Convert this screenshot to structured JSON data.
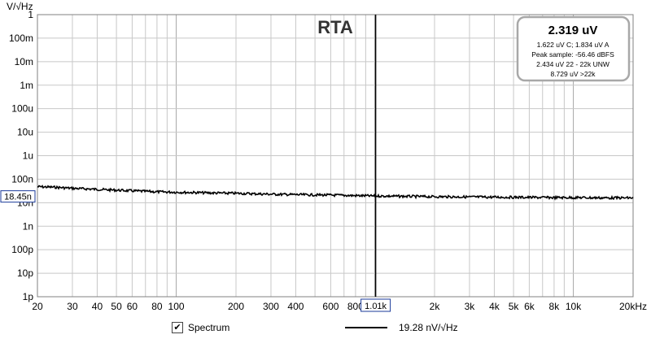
{
  "chart_data": {
    "type": "line",
    "title": "RTA",
    "ylabel": "V/√Hz",
    "y_scale": "log",
    "x_scale": "log",
    "xlim": [
      20,
      20000
    ],
    "ylim": [
      1e-12,
      1
    ],
    "y_ticks": [
      {
        "value": 1,
        "label": "1"
      },
      {
        "value": 0.1,
        "label": "100m"
      },
      {
        "value": 0.01,
        "label": "10m"
      },
      {
        "value": 0.001,
        "label": "1m"
      },
      {
        "value": 0.0001,
        "label": "100u"
      },
      {
        "value": 1e-05,
        "label": "10u"
      },
      {
        "value": 1e-06,
        "label": "1u"
      },
      {
        "value": 1e-07,
        "label": "100n"
      },
      {
        "value": 1e-08,
        "label": "10n"
      },
      {
        "value": 1e-09,
        "label": "1n"
      },
      {
        "value": 1e-10,
        "label": "100p"
      },
      {
        "value": 1e-11,
        "label": "10p"
      },
      {
        "value": 1e-12,
        "label": "1p"
      }
    ],
    "x_ticks": [
      {
        "value": 20,
        "label": "20"
      },
      {
        "value": 30,
        "label": "30"
      },
      {
        "value": 40,
        "label": "40"
      },
      {
        "value": 50,
        "label": "50"
      },
      {
        "value": 60,
        "label": "60"
      },
      {
        "value": 80,
        "label": "80"
      },
      {
        "value": 100,
        "label": "100"
      },
      {
        "value": 200,
        "label": "200"
      },
      {
        "value": 300,
        "label": "300"
      },
      {
        "value": 400,
        "label": "400"
      },
      {
        "value": 600,
        "label": "600"
      },
      {
        "value": 800,
        "label": "800"
      },
      {
        "value": 2000,
        "label": "2k"
      },
      {
        "value": 3000,
        "label": "3k"
      },
      {
        "value": 4000,
        "label": "4k"
      },
      {
        "value": 5000,
        "label": "5k"
      },
      {
        "value": 6000,
        "label": "6k"
      },
      {
        "value": 8000,
        "label": "8k"
      },
      {
        "value": 10000,
        "label": "10k"
      },
      {
        "value": 20000,
        "label": "20kHz"
      }
    ],
    "grid": true,
    "series": [
      {
        "name": "Spectrum",
        "color": "#000000",
        "x": [
          20,
          25,
          30,
          40,
          50,
          60,
          80,
          100,
          150,
          200,
          300,
          400,
          600,
          800,
          1010,
          1500,
          2000,
          3000,
          5000,
          8000,
          10000,
          15000,
          20000
        ],
        "y": [
          4.8e-08,
          4.5e-08,
          4.1e-08,
          3.7e-08,
          3.4e-08,
          3.2e-08,
          2.9e-08,
          2.8e-08,
          2.6e-08,
          2.5e-08,
          2.3e-08,
          2.2e-08,
          2.1e-08,
          2e-08,
          1.93e-08,
          1.85e-08,
          1.8e-08,
          1.75e-08,
          1.7e-08,
          1.65e-08,
          1.65e-08,
          1.6e-08,
          1.6e-08
        ]
      }
    ],
    "cursor": {
      "x_label": "1.01k",
      "x_value": 1010,
      "y_label": "18.45n",
      "y_value": 1.845e-08
    }
  },
  "readout": {
    "main": "2.319 uV",
    "lines": [
      "1.622 uV C; 1.834 uV A",
      "Peak sample: -56.46 dBFS",
      "2.434 uV 22 - 22k UNW",
      "8.729 uV >22k"
    ]
  },
  "legend": {
    "spectrum_label": "Spectrum",
    "spectrum_checked": "✔",
    "value_label": "19.28 nV/√Hz"
  },
  "colors": {
    "grid": "#c8c8c8",
    "frame": "#808080",
    "trace": "#000000",
    "cursor_box": "#1a3a9a"
  }
}
